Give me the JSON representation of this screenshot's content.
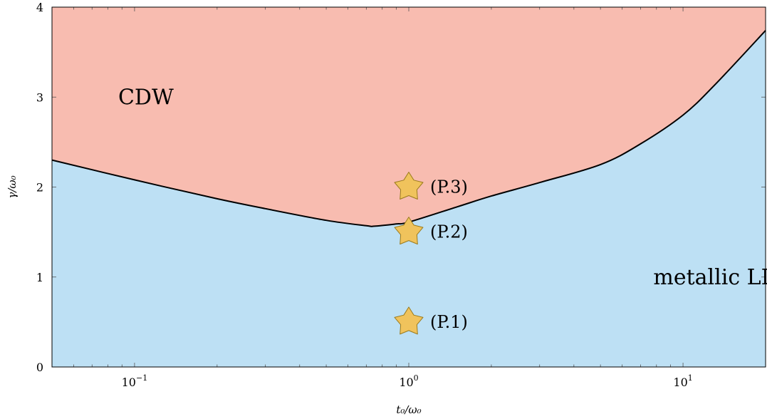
{
  "chart_data": {
    "type": "area",
    "x_scale": "log",
    "xlim": [
      0.05,
      20
    ],
    "ylim": [
      0,
      4
    ],
    "xlabel": "t₀/ω₀",
    "ylabel": "γ/ω₀",
    "x_ticks": [
      {
        "value": 0.1,
        "base": "10",
        "exp": "−1"
      },
      {
        "value": 1,
        "base": "10",
        "exp": "0"
      },
      {
        "value": 10,
        "base": "10",
        "exp": "1"
      }
    ],
    "y_ticks": [
      "0",
      "1",
      "2",
      "3",
      "4"
    ],
    "boundary": {
      "x": [
        0.05,
        0.1,
        0.2,
        0.3,
        0.5,
        0.7,
        0.75,
        0.9,
        1.0,
        1.5,
        2.0,
        3.0,
        5.0,
        7.0,
        10.0,
        13.0,
        20.0
      ],
      "y": [
        2.3,
        2.08,
        1.87,
        1.76,
        1.63,
        1.57,
        1.565,
        1.59,
        1.61,
        1.78,
        1.9,
        2.05,
        2.25,
        2.48,
        2.8,
        3.13,
        3.74
      ]
    },
    "regions": [
      {
        "name": "CDW",
        "position": "above boundary",
        "color": "#f8bcb0",
        "label_at": [
          0.11,
          3.0
        ]
      },
      {
        "name": "metallic LL",
        "position": "below boundary",
        "color": "#bde0f4",
        "label_at": [
          13,
          1.0
        ]
      }
    ],
    "points": [
      {
        "label": "(P.1)",
        "x": 1.0,
        "y": 0.5
      },
      {
        "label": "(P.2)",
        "x": 1.0,
        "y": 1.5
      },
      {
        "label": "(P.3)",
        "x": 1.0,
        "y": 2.0
      }
    ],
    "grid": false,
    "colors": {
      "cdw": "#f8bcb0",
      "metallic": "#bde0f4",
      "boundary": "#000000",
      "star_fill": "#f0c35c",
      "star_stroke": "#9a7b1e"
    }
  }
}
